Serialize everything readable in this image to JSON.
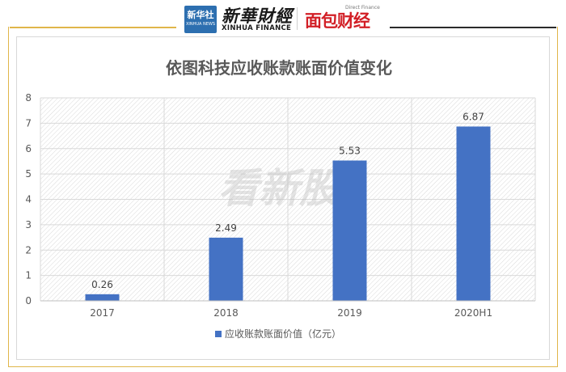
{
  "header": {
    "xinhua_logo_text": "新华社",
    "xinhua_logo_sub": "XINHUA NEWS",
    "finance_cn": "新華財經",
    "finance_en": "XINHUA FINANCE",
    "direct_finance_en": "Direct Finance",
    "direct_finance_cn": "面包财经"
  },
  "watermark": "看新股",
  "colors": {
    "bar": "#4472c4",
    "accent_rule": "#e0b64a",
    "brand_red": "#d21f26"
  },
  "chart_data": {
    "type": "bar",
    "title": "依图科技应收账款账面价值变化",
    "categories": [
      "2017",
      "2018",
      "2019",
      "2020H1"
    ],
    "series": [
      {
        "name": "应收账款账面价值（亿元）",
        "values": [
          0.26,
          2.49,
          5.53,
          6.87
        ]
      }
    ],
    "data_labels": [
      "0.26",
      "2.49",
      "5.53",
      "6.87"
    ],
    "ylim": [
      0,
      8
    ],
    "yticks": [
      "0",
      "1",
      "2",
      "3",
      "4",
      "5",
      "6",
      "7",
      "8"
    ],
    "grid": true,
    "legend_position": "bottom",
    "xlabel": "",
    "ylabel": ""
  }
}
